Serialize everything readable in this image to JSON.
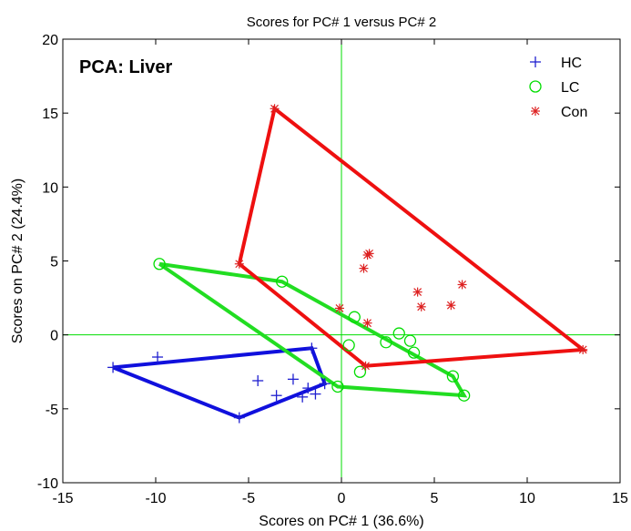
{
  "chart_data": {
    "type": "scatter",
    "title": "Scores for PC# 1 versus PC# 2",
    "xlabel": "Scores on PC# 1 (36.6%)",
    "ylabel": "Scores on PC# 2 (24.4%)",
    "xlim": [
      -15,
      15
    ],
    "ylim": [
      -10,
      20
    ],
    "xticks": [
      -15,
      -10,
      -5,
      0,
      5,
      10,
      15
    ],
    "yticks": [
      -10,
      -5,
      0,
      5,
      10,
      15,
      20
    ],
    "grid": false,
    "annotation": "PCA: Liver",
    "legend_position": "top-right",
    "zero_lines": {
      "color": "#00dd00"
    },
    "series": [
      {
        "name": "HC",
        "marker": "plus",
        "color": "#1f1fd0",
        "hull_color": "#1010dd",
        "points": [
          [
            -12.3,
            -2.2
          ],
          [
            -9.9,
            -1.5
          ],
          [
            -5.5,
            -5.6
          ],
          [
            -4.5,
            -3.1
          ],
          [
            -3.5,
            -4.1
          ],
          [
            -2.6,
            -3.0
          ],
          [
            -2.1,
            -4.2
          ],
          [
            -1.8,
            -3.6
          ],
          [
            -1.6,
            -0.9
          ],
          [
            -1.4,
            -4.0
          ],
          [
            -0.9,
            -3.3
          ]
        ],
        "hull": [
          [
            -12.3,
            -2.2
          ],
          [
            -1.6,
            -0.9
          ],
          [
            -0.9,
            -3.3
          ],
          [
            -5.5,
            -5.6
          ],
          [
            -12.3,
            -2.2
          ]
        ]
      },
      {
        "name": "LC",
        "marker": "circle",
        "color": "#00dd00",
        "hull_color": "#22dd22",
        "points": [
          [
            -9.8,
            4.8
          ],
          [
            -3.2,
            3.6
          ],
          [
            -0.2,
            -3.5
          ],
          [
            0.4,
            -0.7
          ],
          [
            0.7,
            1.2
          ],
          [
            1.0,
            -2.5
          ],
          [
            2.4,
            -0.5
          ],
          [
            3.1,
            0.1
          ],
          [
            3.7,
            -0.4
          ],
          [
            3.9,
            -1.2
          ],
          [
            6.0,
            -2.8
          ],
          [
            6.6,
            -4.1
          ]
        ],
        "hull": [
          [
            -9.8,
            4.8
          ],
          [
            -3.2,
            3.6
          ],
          [
            6.0,
            -2.8
          ],
          [
            6.6,
            -4.1
          ],
          [
            -0.2,
            -3.5
          ],
          [
            -9.8,
            4.8
          ]
        ]
      },
      {
        "name": "Con",
        "marker": "star",
        "color": "#dd2020",
        "hull_color": "#ee1010",
        "points": [
          [
            -5.5,
            4.8
          ],
          [
            -3.6,
            15.3
          ],
          [
            -0.1,
            1.8
          ],
          [
            1.2,
            4.5
          ],
          [
            1.4,
            5.4
          ],
          [
            1.5,
            5.5
          ],
          [
            1.4,
            0.8
          ],
          [
            1.3,
            -2.1
          ],
          [
            4.1,
            2.9
          ],
          [
            4.3,
            1.9
          ],
          [
            5.9,
            2.0
          ],
          [
            6.5,
            3.4
          ],
          [
            13.0,
            -1.0
          ]
        ],
        "hull": [
          [
            -5.5,
            4.8
          ],
          [
            -3.6,
            15.3
          ],
          [
            13.0,
            -1.0
          ],
          [
            1.3,
            -2.1
          ],
          [
            -5.5,
            4.8
          ]
        ]
      }
    ]
  }
}
